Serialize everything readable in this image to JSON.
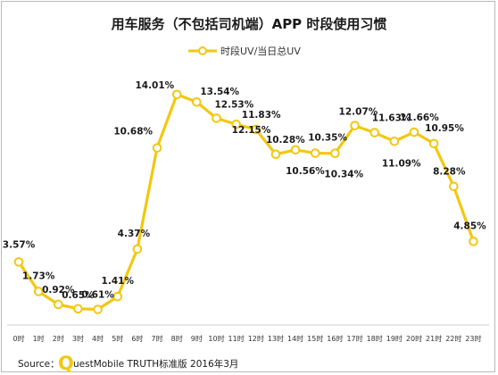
{
  "chart_data": {
    "type": "line",
    "title": "用车服务（不包括司机端）APP 时段使用习惯",
    "legend": [
      "时段UV/当日总UV"
    ],
    "legend_position": "top",
    "categories": [
      "0时",
      "1时",
      "2时",
      "3时",
      "4时",
      "5时",
      "6时",
      "7时",
      "8时",
      "9时",
      "10时",
      "11时",
      "12时",
      "13时",
      "14时",
      "15时",
      "16时",
      "17时",
      "18时",
      "19时",
      "20时",
      "21时",
      "22时",
      "23时"
    ],
    "series": [
      {
        "name": "时段UV/当日总UV",
        "values": [
          3.57,
          1.73,
          0.92,
          0.65,
          0.61,
          1.41,
          4.37,
          10.68,
          14.01,
          13.54,
          12.53,
          12.15,
          11.83,
          10.28,
          10.56,
          10.35,
          10.34,
          12.07,
          11.63,
          11.09,
          11.66,
          10.95,
          8.28,
          4.85
        ],
        "labels": [
          "3.57%",
          "1.73%",
          "0.92%",
          "0.65%",
          "0.61%",
          "1.41%",
          "4.37%",
          "10.68%",
          "14.01%",
          "13.54%",
          "12.53%",
          "12.15%",
          "11.83%",
          "10.28%",
          "10.56%",
          "10.35%",
          "10.34%",
          "12.07%",
          "11.63%",
          "11.09%",
          "11.66%",
          "10.95%",
          "8.28%",
          "4.85%"
        ]
      }
    ],
    "ylim": [
      0,
      14.5
    ],
    "grid": false,
    "line_color": "#f2c811",
    "source": {
      "prefix": "Source：",
      "q": "Q",
      "rest": "uestMobile TRUTH标准版 2016年3月"
    }
  }
}
